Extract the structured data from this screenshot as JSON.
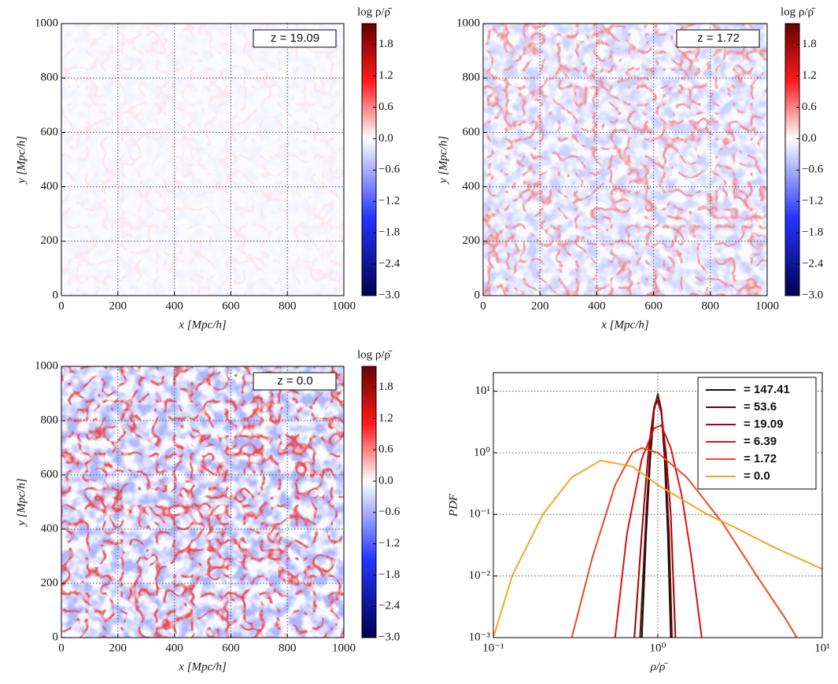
{
  "chart_data": [
    {
      "type": "heatmap",
      "xlabel": "x [Mpc/h]",
      "ylabel": "y [Mpc/h]",
      "annotation": "z = 19.09",
      "xlim": [
        0,
        1000
      ],
      "ylim": [
        0,
        1000
      ],
      "xticks": [
        0,
        200,
        400,
        600,
        800,
        1000
      ],
      "yticks": [
        0,
        200,
        400,
        600,
        800,
        1000
      ],
      "grid": true,
      "colorbar": {
        "label": "log ρ/ρ̄",
        "lim": [
          -3,
          2.2
        ],
        "colormap": [
          "#000050",
          "#2436ff",
          "#ffffff",
          "#ff1a1a",
          "#6a0000"
        ],
        "ticks": [
          {
            "value": -3,
            "label": "−3.0"
          },
          {
            "value": -2.4,
            "label": "−2.4"
          },
          {
            "value": -1.8,
            "label": "−1.8"
          },
          {
            "value": -1.2,
            "label": "−1.2"
          },
          {
            "value": -0.6,
            "label": "−0.6"
          },
          {
            "value": 0,
            "label": "0.0"
          },
          0.6,
          1.2,
          1.8
        ]
      }
    },
    {
      "type": "heatmap",
      "xlabel": "x [Mpc/h]",
      "ylabel": "y [Mpc/h]",
      "annotation": "z = 1.72",
      "xlim": [
        0,
        1000
      ],
      "ylim": [
        0,
        1000
      ],
      "xticks": [
        0,
        200,
        400,
        600,
        800,
        1000
      ],
      "yticks": [
        0,
        200,
        400,
        600,
        800,
        1000
      ],
      "grid": true,
      "colorbar": {
        "label": "log ρ/ρ̄",
        "lim": [
          -3,
          2.2
        ],
        "colormap": [
          "#000050",
          "#2436ff",
          "#ffffff",
          "#ff1a1a",
          "#6a0000"
        ],
        "ticks": [
          {
            "value": -3,
            "label": "−3.0"
          },
          {
            "value": -2.4,
            "label": "−2.4"
          },
          {
            "value": -1.8,
            "label": "−1.8"
          },
          {
            "value": -1.2,
            "label": "−1.2"
          },
          {
            "value": -0.6,
            "label": "−0.6"
          },
          {
            "value": 0,
            "label": "0.0"
          },
          0.6,
          1.2,
          1.8
        ]
      }
    },
    {
      "type": "heatmap",
      "xlabel": "x [Mpc/h]",
      "ylabel": "y [Mpc/h]",
      "annotation": "z = 0.0",
      "xlim": [
        0,
        1000
      ],
      "ylim": [
        0,
        1000
      ],
      "xticks": [
        0,
        200,
        400,
        600,
        800,
        1000
      ],
      "yticks": [
        0,
        200,
        400,
        600,
        800,
        1000
      ],
      "grid": true,
      "colorbar": {
        "label": "log ρ/ρ̄",
        "lim": [
          -3,
          2.2
        ],
        "colormap": [
          "#000050",
          "#2436ff",
          "#ffffff",
          "#ff1a1a",
          "#6a0000"
        ],
        "ticks": [
          {
            "value": -3,
            "label": "−3.0"
          },
          {
            "value": -2.4,
            "label": "−2.4"
          },
          {
            "value": -1.8,
            "label": "−1.8"
          },
          {
            "value": -1.2,
            "label": "−1.2"
          },
          {
            "value": -0.6,
            "label": "−0.6"
          },
          {
            "value": 0,
            "label": "0.0"
          },
          0.6,
          1.2,
          1.8
        ]
      }
    },
    {
      "type": "line",
      "xlabel": "ρ/ρ̄",
      "ylabel": "PDF",
      "xlog": true,
      "ylog": true,
      "grid": true,
      "legend": "upper right",
      "xlim": [
        0.1,
        10
      ],
      "ylim": [
        0.001,
        20
      ],
      "xticks": [
        {
          "value": 0.1,
          "label": "10⁻¹"
        },
        {
          "value": 1,
          "label": "10⁰"
        },
        {
          "value": 10,
          "label": "10¹"
        }
      ],
      "yticks": [
        {
          "value": 0.001,
          "label": "10⁻³"
        },
        {
          "value": 0.01,
          "label": "10⁻²"
        },
        {
          "value": 0.1,
          "label": "10⁻¹"
        },
        {
          "value": 1,
          "label": "10⁰"
        },
        {
          "value": 10,
          "label": "10¹"
        }
      ],
      "series": [
        {
          "name": "= 147.41",
          "color": "#1a0a0a",
          "x": [
            0.8,
            0.85,
            0.9,
            0.95,
            1.0,
            1.05,
            1.1,
            1.15,
            1.2
          ],
          "values": [
            0.001,
            0.05,
            0.8,
            5,
            9,
            5,
            0.8,
            0.05,
            0.001
          ]
        },
        {
          "name": "= 53.6",
          "color": "#5a0a0a",
          "x": [
            0.78,
            0.85,
            0.9,
            0.95,
            1.0,
            1.05,
            1.1,
            1.17,
            1.22
          ],
          "values": [
            0.001,
            0.1,
            1.2,
            5.5,
            8.5,
            5,
            1.2,
            0.05,
            0.001
          ]
        },
        {
          "name": "= 19.09",
          "color": "#a80000",
          "x": [
            0.72,
            0.8,
            0.88,
            0.95,
            1.0,
            1.05,
            1.12,
            1.2,
            1.28
          ],
          "values": [
            0.001,
            0.05,
            1.2,
            5.5,
            7,
            4.5,
            1,
            0.1,
            0.001
          ]
        },
        {
          "name": "= 6.39",
          "color": "#e01010",
          "x": [
            0.55,
            0.65,
            0.8,
            0.95,
            1.05,
            1.2,
            1.4,
            1.6,
            1.85
          ],
          "values": [
            0.001,
            0.05,
            0.8,
            2.5,
            2.8,
            1.2,
            0.2,
            0.02,
            0.001
          ]
        },
        {
          "name": "= 1.72",
          "color": "#f04a24",
          "x": [
            0.3,
            0.4,
            0.55,
            0.7,
            0.8,
            1.0,
            1.5,
            2.5,
            4,
            6,
            7
          ],
          "values": [
            0.001,
            0.02,
            0.3,
            1.0,
            1.2,
            1.0,
            0.4,
            0.07,
            0.01,
            0.002,
            0.001
          ]
        },
        {
          "name": "= 0.0",
          "color": "#f5a623",
          "x": [
            0.1,
            0.13,
            0.2,
            0.3,
            0.45,
            0.7,
            1,
            2,
            3,
            5,
            10
          ],
          "values": [
            0.001,
            0.01,
            0.1,
            0.4,
            0.75,
            0.6,
            0.3,
            0.1,
            0.06,
            0.03,
            0.013
          ]
        }
      ]
    }
  ]
}
